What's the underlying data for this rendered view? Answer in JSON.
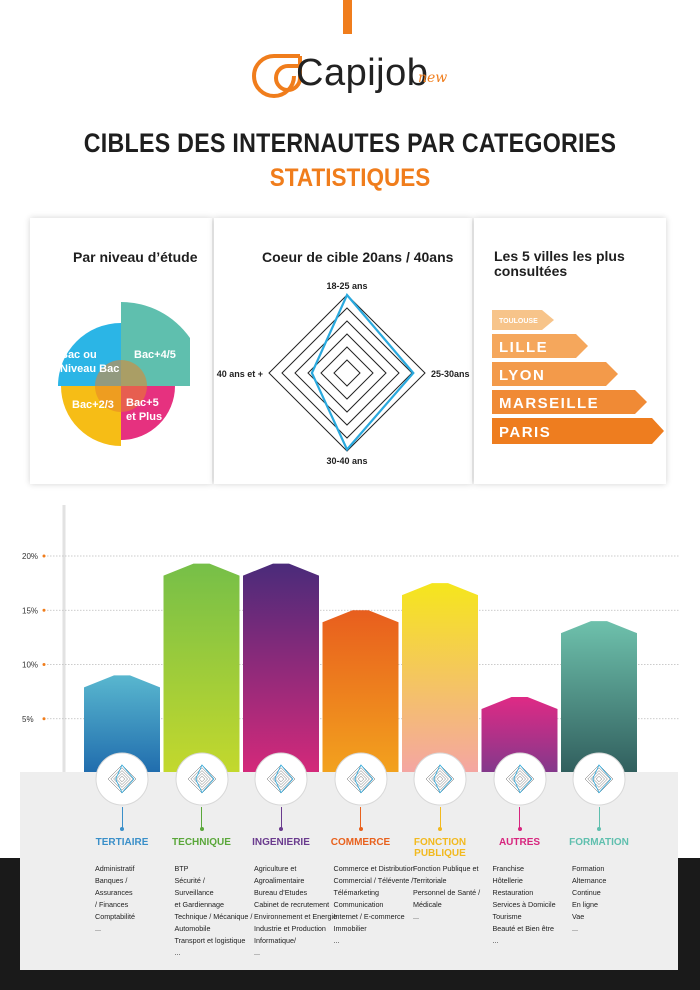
{
  "logo": {
    "name": "Capijob",
    "badge": "new"
  },
  "header": {
    "title": "CIBLES DES INTERNAUTES PAR CATEGORIES",
    "subtitle": "STATISTIQUES"
  },
  "colors": {
    "accent": "#f07d1c"
  },
  "chart_data": [
    {
      "type": "pie",
      "title": "Par niveau d’étude",
      "slices": [
        {
          "label": "Bac ou Niveau Bac",
          "color": "#2bb5e6"
        },
        {
          "label": "Bac+4/5",
          "color": "#5fbfae"
        },
        {
          "label": "Bac+5 et Plus",
          "color": "#e6317f"
        },
        {
          "label": "Bac+2/3",
          "color": "#f6bd16"
        }
      ]
    },
    {
      "type": "radar",
      "title": "Coeur de cible  20ans / 40ans",
      "axes": [
        "18-25 ans",
        "25-30ans",
        "30-40 ans",
        "40 ans et +"
      ],
      "values": [
        1.0,
        0.85,
        0.98,
        0.45
      ],
      "max": 1.0
    },
    {
      "type": "bar",
      "title": "Les 5 villes les plus consultées",
      "categories": [
        "TOULOUSE",
        "LILLE",
        "LYON",
        "MARSEILLE",
        "PARIS"
      ],
      "values": [
        1,
        2,
        3,
        4,
        5
      ]
    },
    {
      "type": "bar",
      "ytick_labels": [
        "20%",
        "15%",
        "10%",
        "5%"
      ],
      "ylim": [
        0,
        20
      ],
      "categories": [
        "TERTIAIRE",
        "TECHNIQUE",
        "INGENIERIE",
        "COMMERCE",
        "FONCTION PUBLIQUE",
        "AUTRES",
        "FORMATION"
      ],
      "values": [
        9,
        19.3,
        19.3,
        15,
        17.5,
        7,
        14
      ],
      "series": [
        {
          "category": "TERTIAIRE",
          "value": 9,
          "color_top": "#59b7cf",
          "color_bottom": "#1c67ab"
        },
        {
          "category": "TECHNIQUE",
          "value": 19.3,
          "color_top": "#76bf48",
          "color_bottom": "#c6d92c"
        },
        {
          "category": "INGENIERIE",
          "value": 19.3,
          "color_top": "#4a2b7a",
          "color_bottom": "#d9297a"
        },
        {
          "category": "COMMERCE",
          "value": 15,
          "color_top": "#e85e1e",
          "color_bottom": "#f3a51e"
        },
        {
          "category": "FONCTION PUBLIQUE",
          "value": 17.5,
          "color_top": "#f5e61c",
          "color_bottom": "#f4a3a8"
        },
        {
          "category": "AUTRES",
          "value": 7,
          "color_top": "#df2a85",
          "color_bottom": "#7a3a8c"
        },
        {
          "category": "FORMATION",
          "value": 14,
          "color_top": "#6ec1ac",
          "color_bottom": "#2e5a5a"
        }
      ]
    }
  ],
  "categories": [
    {
      "label": "TERTIAIRE",
      "color": "#3a8fc9",
      "items": [
        "Administratif",
        "Banques /",
        "Assurances",
        "/ Finances",
        "Comptabilité",
        "..."
      ]
    },
    {
      "label": "TECHNIQUE",
      "color": "#5aa73a",
      "items": [
        "BTP",
        "Sécurité  /",
        "Surveillance",
        "et Gardiennage",
        "Technique / Mécanique /",
        "Automobile",
        "Transport et logistique",
        "..."
      ]
    },
    {
      "label": "INGENIERIE",
      "color": "#6a3b8e",
      "items": [
        "Agriculture et",
        "Agroalimentaire",
        "Bureau d’Etudes",
        "Cabinet de recrutement",
        "Environnement et Energie",
        "Industrie et Production",
        "Informatique/",
        "..."
      ]
    },
    {
      "label": "COMMERCE",
      "color": "#e8611d",
      "items": [
        "Commerce et Distribution",
        "Commercial  / Télévente /",
        "Télémarketing",
        "Communication",
        "Internet  /  E-commerce",
        "Immobilier",
        "..."
      ]
    },
    {
      "label": "FONCTION PUBLIQUE",
      "label_lines": [
        "FONCTION",
        "PUBLIQUE"
      ],
      "color": "#f2b91e",
      "items": [
        "Fonction Publique et",
        "Territoriale",
        "Personnel de Santé /",
        "Médicale",
        "..."
      ]
    },
    {
      "label": "AUTRES",
      "color": "#d7257e",
      "items": [
        "Franchise",
        "Hôtellerie",
        "Restauration",
        "Services à Domicile",
        "Tourisme",
        "Beauté et Bien être",
        "..."
      ]
    },
    {
      "label": "FORMATION",
      "color": "#5fbfae",
      "items": [
        "Formation",
        "Alternance",
        "Continue",
        "En ligne",
        "Vae",
        "..."
      ]
    }
  ]
}
